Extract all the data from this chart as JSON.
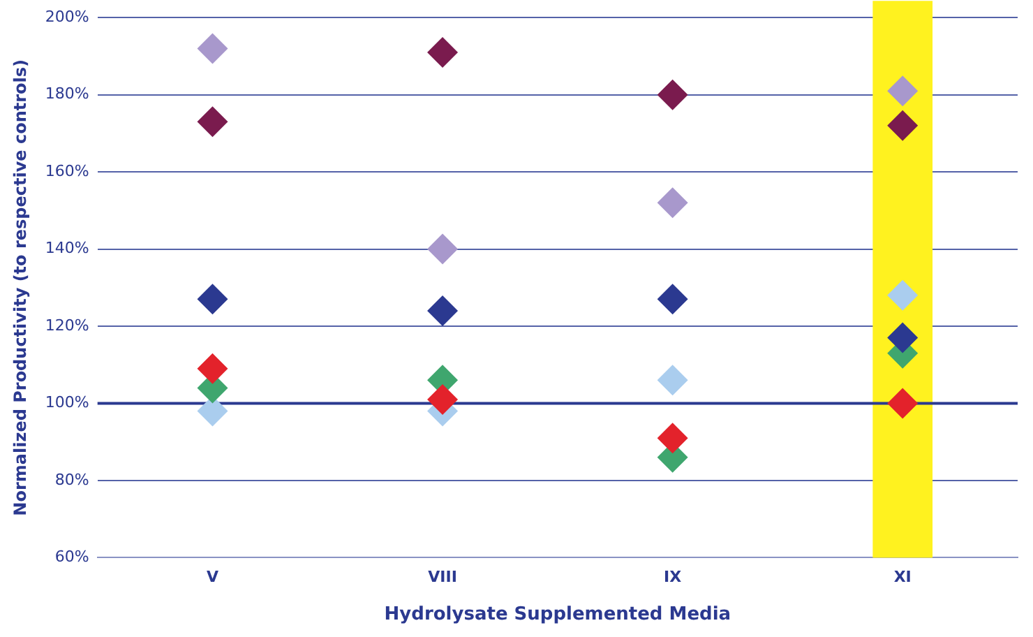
{
  "chart_data": {
    "type": "scatter",
    "xlabel": "Hydrolysate Supplemented Media",
    "ylabel": "Normalized Productivity (to respective controls)",
    "categories": [
      "V",
      "VIII",
      "IX",
      "XI"
    ],
    "series": [
      {
        "color": "#a898cc",
        "values": [
          192,
          140,
          152,
          181
        ]
      },
      {
        "color": "#7a1b4e",
        "values": [
          173,
          191,
          180,
          172
        ]
      },
      {
        "color": "#2b3990",
        "values": [
          127,
          124,
          127,
          117
        ]
      },
      {
        "color": "#e3222b",
        "values": [
          109,
          101,
          91,
          100
        ]
      },
      {
        "color": "#3fa66e",
        "values": [
          104,
          106,
          86,
          113
        ]
      },
      {
        "color": "#aacdee",
        "values": [
          98,
          98,
          106,
          128
        ]
      }
    ],
    "ylim": [
      60,
      200
    ],
    "yticks": [
      {
        "value": 60,
        "label": "60%"
      },
      {
        "value": 80,
        "label": "80%"
      },
      {
        "value": 100,
        "label": "100%"
      },
      {
        "value": 120,
        "label": "120%"
      },
      {
        "value": 140,
        "label": "140%"
      },
      {
        "value": 160,
        "label": "160%"
      },
      {
        "value": 180,
        "label": "180%"
      },
      {
        "value": 200,
        "label": "200%"
      }
    ],
    "grid": "y",
    "marker": "diamond",
    "legend": false,
    "ref_lines": [
      {
        "axis": "y",
        "value": 100,
        "color": "#2b3990"
      }
    ],
    "bands": [
      {
        "axis": "x",
        "from": "XI",
        "to": "XI",
        "color": "#fff21f"
      }
    ]
  }
}
